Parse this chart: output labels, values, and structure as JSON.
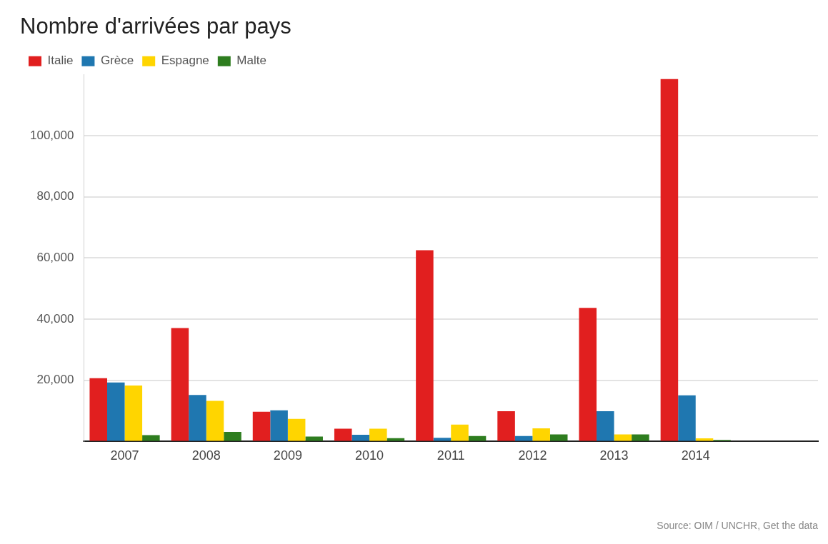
{
  "chart_data": {
    "type": "bar",
    "title": "Nombre d'arrivées par pays",
    "categories": [
      "2007",
      "2008",
      "2009",
      "2010",
      "2011",
      "2012",
      "2013",
      "2014",
      null
    ],
    "series": [
      {
        "name": "Italie",
        "color": "#e11f1f",
        "values": [
          20700,
          37100,
          9700,
          4200,
          62500,
          9900,
          43700,
          118500,
          null
        ]
      },
      {
        "name": "Grèce",
        "color": "#1f77b0",
        "values": [
          19300,
          15200,
          10200,
          2200,
          1200,
          1800,
          9900,
          15100,
          null
        ]
      },
      {
        "name": "Espagne",
        "color": "#ffd500",
        "values": [
          18300,
          13300,
          7400,
          4200,
          5500,
          4300,
          2300,
          1000,
          null
        ]
      },
      {
        "name": "Malte",
        "color": "#2e7d1f",
        "values": [
          2100,
          3100,
          1600,
          1100,
          1800,
          2300,
          2300,
          500,
          null
        ]
      }
    ],
    "yticks": [
      {
        "value": 0,
        "label": null
      },
      {
        "value": 20000,
        "label": "20,000"
      },
      {
        "value": 40000,
        "label": "40,000"
      },
      {
        "value": 60000,
        "label": "60,000"
      },
      {
        "value": 80000,
        "label": "80,000"
      },
      {
        "value": 100000,
        "label": "100,000"
      }
    ],
    "ylim": [
      0,
      120000
    ],
    "grid": "y",
    "legend": "top left",
    "annotations": [
      "Source: OIM / UNCHR, Get the data"
    ]
  }
}
